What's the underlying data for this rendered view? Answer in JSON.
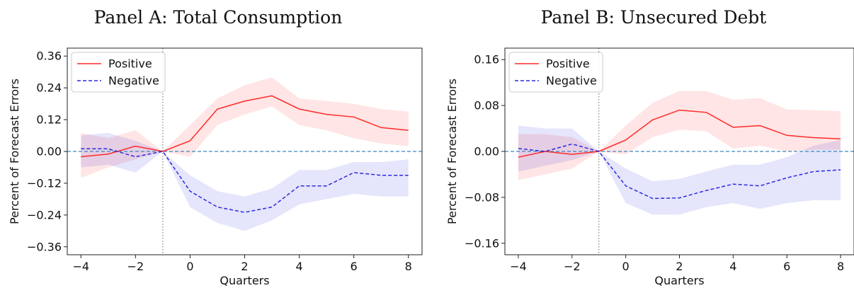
{
  "chart_data": [
    {
      "type": "line",
      "title": "Panel A: Total Consumption",
      "xlabel": "Quarters",
      "ylabel": "Percent of Forecast Errors",
      "x": [
        -4,
        -3,
        -2,
        -1,
        0,
        1,
        2,
        3,
        4,
        5,
        6,
        7,
        8
      ],
      "xlim": [
        -4.5,
        8.5
      ],
      "ylim": [
        -0.39,
        0.39
      ],
      "xticks": [
        -4,
        -2,
        0,
        2,
        4,
        6,
        8
      ],
      "xtick_labels": [
        "−4",
        "−2",
        "0",
        "2",
        "4",
        "6",
        "8"
      ],
      "yticks": [
        -0.36,
        -0.24,
        -0.12,
        0.0,
        0.12,
        0.24,
        0.36
      ],
      "ytick_labels": [
        "−0.36",
        "−0.24",
        "−0.12",
        "0.00",
        "0.12",
        "0.24",
        "0.36"
      ],
      "vline_x": -1,
      "hline_y": 0,
      "legend_position": "top-left",
      "series": [
        {
          "name": "Positive",
          "color": "#ff2a2a",
          "style": "solid",
          "values": [
            -0.02,
            -0.01,
            0.02,
            0.0,
            0.04,
            0.16,
            0.19,
            0.21,
            0.16,
            0.14,
            0.13,
            0.09,
            0.08
          ],
          "lower": [
            -0.1,
            -0.06,
            -0.03,
            0.0,
            -0.02,
            0.1,
            0.14,
            0.17,
            0.1,
            0.08,
            0.05,
            0.03,
            0.02
          ],
          "upper": [
            0.07,
            0.05,
            0.08,
            0.0,
            0.1,
            0.2,
            0.25,
            0.28,
            0.2,
            0.19,
            0.18,
            0.16,
            0.15
          ]
        },
        {
          "name": "Negative",
          "color": "#2a2ae0",
          "style": "dashed",
          "values": [
            0.01,
            0.01,
            -0.02,
            0.0,
            -0.15,
            -0.21,
            -0.23,
            -0.21,
            -0.13,
            -0.13,
            -0.08,
            -0.09,
            -0.09
          ],
          "lower": [
            -0.06,
            -0.05,
            -0.08,
            0.0,
            -0.21,
            -0.27,
            -0.3,
            -0.26,
            -0.2,
            -0.18,
            -0.16,
            -0.17,
            -0.17
          ],
          "upper": [
            0.06,
            0.07,
            0.04,
            0.0,
            -0.09,
            -0.15,
            -0.17,
            -0.14,
            -0.07,
            -0.07,
            -0.04,
            -0.04,
            -0.03
          ]
        }
      ]
    },
    {
      "type": "line",
      "title": "Panel B: Unsecured Debt",
      "xlabel": "Quarters",
      "ylabel": "Percent of Forecast Errors",
      "x": [
        -4,
        -3,
        -2,
        -1,
        0,
        1,
        2,
        3,
        4,
        5,
        6,
        7,
        8
      ],
      "xlim": [
        -4.5,
        8.5
      ],
      "ylim": [
        -0.18,
        0.18
      ],
      "xticks": [
        -4,
        -2,
        0,
        2,
        4,
        6,
        8
      ],
      "xtick_labels": [
        "−4",
        "−2",
        "0",
        "2",
        "4",
        "6",
        "8"
      ],
      "yticks": [
        -0.16,
        -0.08,
        0.0,
        0.08,
        0.16
      ],
      "ytick_labels": [
        "−0.16",
        "−0.08",
        "0.00",
        "0.08",
        "0.16"
      ],
      "vline_x": -1,
      "hline_y": 0,
      "legend_position": "top-left",
      "series": [
        {
          "name": "Positive",
          "color": "#ff2a2a",
          "style": "solid",
          "values": [
            -0.01,
            0.0,
            -0.005,
            0.0,
            0.02,
            0.055,
            0.072,
            0.068,
            0.042,
            0.045,
            0.028,
            0.024,
            0.022
          ],
          "lower": [
            -0.05,
            -0.04,
            -0.03,
            0.0,
            -0.005,
            0.025,
            0.038,
            0.035,
            0.005,
            0.01,
            0.0,
            0.003,
            0.003
          ],
          "upper": [
            0.03,
            0.03,
            0.025,
            0.0,
            0.045,
            0.085,
            0.105,
            0.105,
            0.09,
            0.093,
            0.073,
            0.072,
            0.07
          ]
        },
        {
          "name": "Negative",
          "color": "#2a2ae0",
          "style": "dashed",
          "values": [
            0.005,
            0.0,
            0.013,
            0.0,
            -0.06,
            -0.082,
            -0.081,
            -0.068,
            -0.057,
            -0.06,
            -0.046,
            -0.035,
            -0.032
          ],
          "lower": [
            -0.035,
            -0.025,
            -0.015,
            0.0,
            -0.09,
            -0.11,
            -0.11,
            -0.097,
            -0.09,
            -0.1,
            -0.09,
            -0.085,
            -0.085
          ],
          "upper": [
            0.045,
            0.04,
            0.04,
            0.0,
            -0.03,
            -0.052,
            -0.048,
            -0.035,
            -0.023,
            -0.023,
            -0.01,
            0.01,
            0.02
          ]
        }
      ]
    }
  ]
}
